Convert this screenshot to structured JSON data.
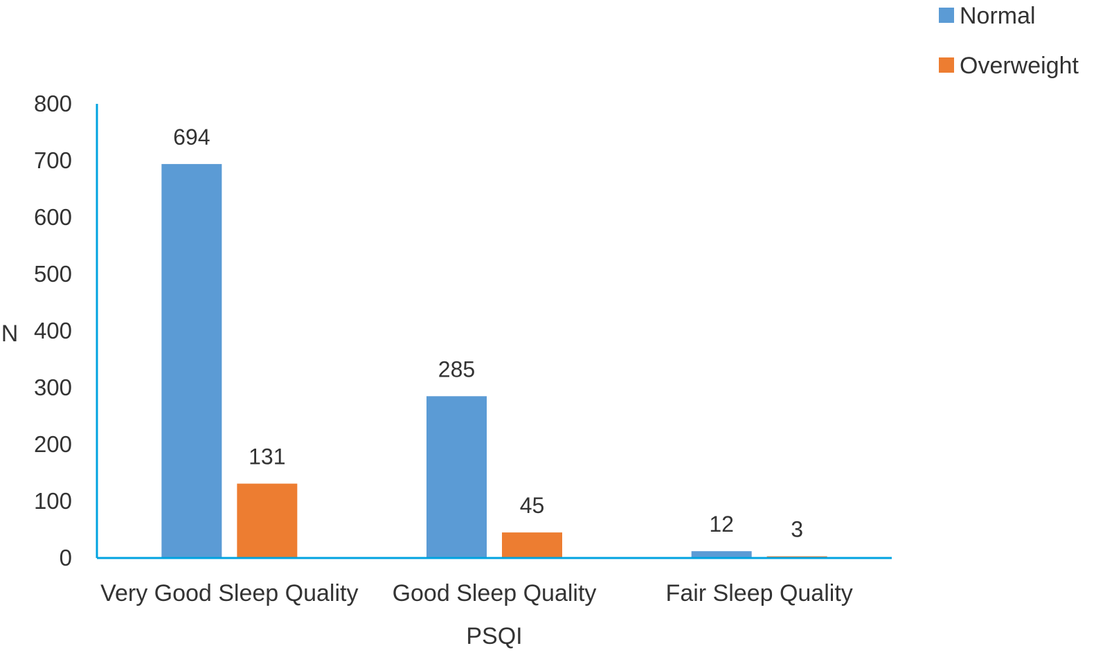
{
  "chart_data": {
    "type": "bar",
    "categories": [
      "Very Good Sleep Quality",
      "Good Sleep Quality",
      "Fair Sleep Quality"
    ],
    "series": [
      {
        "name": "Normal",
        "values": [
          694,
          285,
          12
        ],
        "color": "#5B9BD5"
      },
      {
        "name": "Overweight",
        "values": [
          131,
          45,
          3
        ],
        "color": "#ED7D31"
      }
    ],
    "xlabel": "PSQI",
    "ylabel": "N",
    "ylim": [
      0,
      800
    ],
    "yticks": [
      0,
      100,
      200,
      300,
      400,
      500,
      600,
      700,
      800
    ],
    "grid": false,
    "legend_position": "top-right",
    "axis_color": "#00A3E0"
  }
}
